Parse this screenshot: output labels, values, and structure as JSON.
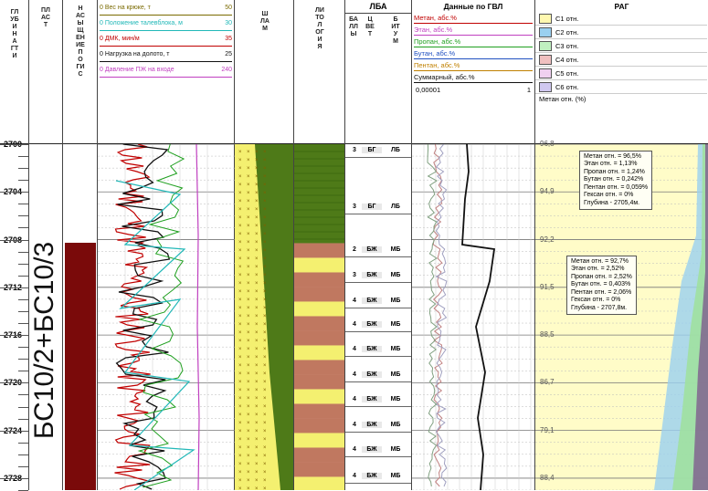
{
  "headers": {
    "depth": "ГЛУБИНА ГТИ",
    "plast": "ПЛАСТ",
    "saturation": "НАСЫЩЕНИЕ ПО ГИС",
    "shlam": "ШЛАМ",
    "lithology": "ЛИТОЛОГИЯ",
    "lba": "ЛБА",
    "lba_points": "БАЛЛЫ",
    "lba_color": "ЦВЕТ",
    "lba_bitum": "БИТУМ",
    "gvl": "Данные по ГВЛ",
    "rag": "РАГ"
  },
  "param_legend": [
    {
      "label": "0 Вес на крюке, т",
      "max": "50",
      "color": "#7a6a00"
    },
    {
      "label": "0 Положение талевблока, м",
      "max": "30",
      "color": "#22b8b8"
    },
    {
      "label": "0 ДМК, мин/м",
      "max": "35",
      "color": "#c00000"
    },
    {
      "label": "0 Нагрузка на долото, т",
      "max": "25",
      "color": "#111111"
    },
    {
      "label": "0 Давление ПЖ на входе",
      "max": "240",
      "color": "#c040c0"
    }
  ],
  "gvl_legend": [
    {
      "label": "Метан, абс.%",
      "color": "#c00000"
    },
    {
      "label": "Этан, абс.%",
      "color": "#c040c0"
    },
    {
      "label": "Пропан, абс.%",
      "color": "#20a020"
    },
    {
      "label": "Бутан, абс.%",
      "color": "#2050c0"
    },
    {
      "label": "Пентан, абс.%",
      "color": "#c08000"
    },
    {
      "label": "Суммарный, абс.%",
      "color": "#111111"
    }
  ],
  "gvl_scale": {
    "min": "0,00001",
    "max": "1"
  },
  "rag_legend": [
    {
      "label": "C1 отн.",
      "color": "#fff8b0"
    },
    {
      "label": "C2 отн.",
      "color": "#9ad0f0"
    },
    {
      "label": "C3 отн.",
      "color": "#c0f0c0"
    },
    {
      "label": "C4 отн.",
      "color": "#f0c0c0"
    },
    {
      "label": "C5 отн.",
      "color": "#f0d0f0"
    },
    {
      "label": "C6 отн.",
      "color": "#d0c8f0"
    }
  ],
  "rag_note": "Метан отн. (%)",
  "plast_name": "БС10/2+БС10/3",
  "chart_data": {
    "type": "line",
    "depth_ticks": [
      "2700",
      "2704",
      "2708",
      "2712",
      "2716",
      "2720",
      "2724",
      "2728"
    ],
    "depth_range": [
      2700,
      2729
    ],
    "lba_rows": [
      {
        "depth": 2700.7,
        "points": "3",
        "color": "БГ",
        "bitum": "ЛБ"
      },
      {
        "depth": 2705.4,
        "points": "3",
        "color": "БГ",
        "bitum": "ЛБ"
      },
      {
        "depth": 2709.0,
        "points": "2",
        "color": "БЖ",
        "bitum": "МБ"
      },
      {
        "depth": 2711.2,
        "points": "3",
        "color": "БЖ",
        "bitum": "МБ"
      },
      {
        "depth": 2713.3,
        "points": "4",
        "color": "БЖ",
        "bitum": "МБ"
      },
      {
        "depth": 2715.3,
        "points": "4",
        "color": "БЖ",
        "bitum": "МБ"
      },
      {
        "depth": 2717.4,
        "points": "4",
        "color": "БЖ",
        "bitum": "МБ"
      },
      {
        "depth": 2719.5,
        "points": "4",
        "color": "БЖ",
        "bitum": "МБ"
      },
      {
        "depth": 2721.6,
        "points": "4",
        "color": "БЖ",
        "bitum": "МБ"
      },
      {
        "depth": 2723.7,
        "points": "4",
        "color": "БЖ",
        "bitum": "МБ"
      },
      {
        "depth": 2725.8,
        "points": "4",
        "color": "БЖ",
        "bitum": "МБ"
      },
      {
        "depth": 2728.0,
        "points": "4",
        "color": "БЖ",
        "bitum": "МБ"
      }
    ],
    "rag_methane": [
      {
        "depth": 2700,
        "value": "96,8"
      },
      {
        "depth": 2704,
        "value": "94,9"
      },
      {
        "depth": 2708,
        "value": "92,2"
      },
      {
        "depth": 2712,
        "value": "91,5"
      },
      {
        "depth": 2716,
        "value": "88,5"
      },
      {
        "depth": 2720,
        "value": "86,7"
      },
      {
        "depth": 2724,
        "value": "79,1"
      },
      {
        "depth": 2728,
        "value": "88,4"
      }
    ],
    "annotations": [
      {
        "depth": 2700.5,
        "lines": [
          "Метан отн. = 96,5%",
          "Этан отн. = 1,13%",
          "Пропан отн. = 1,24%",
          "Бутан отн. = 0,242%",
          "Пентан отн. = 0,059%",
          "Гексан отн. = 0%",
          "",
          "Глубина - 2705,4м."
        ]
      },
      {
        "depth": 2709.3,
        "lines": [
          "Метан отн. = 92,7%",
          "Этан отн. = 2,52%",
          "Пропан отн. = 2,52%",
          "Бутан отн. = 0,403%",
          "Пентан отн. = 2,06%",
          "Гексан отн. = 0%",
          "",
          "Глубина - 2707,8м."
        ]
      }
    ],
    "saturation_interval": [
      2708.3,
      2729
    ],
    "lithology_sandstone_intervals": [
      [
        2708.3,
        2729
      ]
    ],
    "shlam_green_from": 2700
  }
}
